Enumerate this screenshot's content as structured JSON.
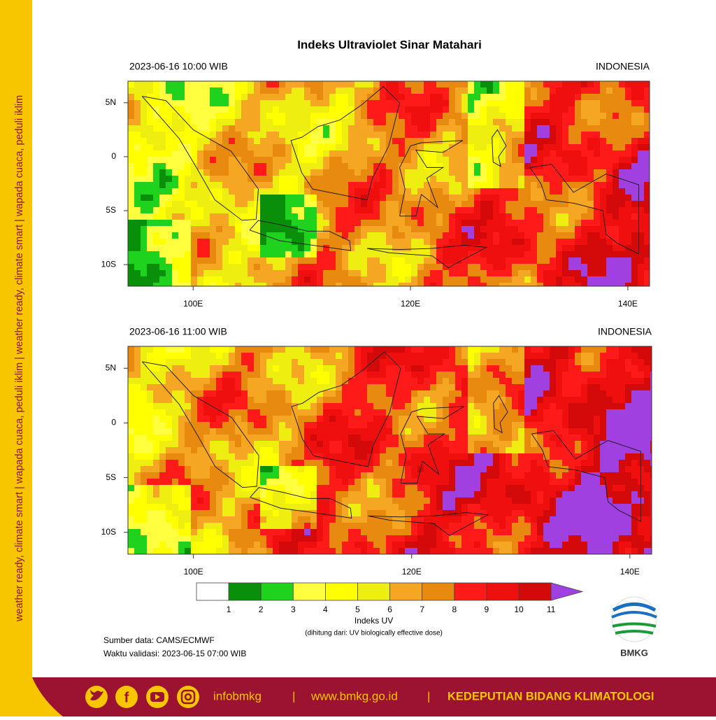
{
  "side_text": "weather ready, climate smart | wapada cuaca, peduli iklim | weather ready, climate smart | wapada cuaca, peduli iklim",
  "title": "Indeks Ultraviolet Sinar Matahari",
  "extent": {
    "lon": [
      94,
      142
    ],
    "lat": [
      -12,
      7
    ]
  },
  "lon_ticks": [
    {
      "value": 100,
      "label": "100E"
    },
    {
      "value": 120,
      "label": "120E"
    },
    {
      "value": 140,
      "label": "140E"
    }
  ],
  "lat_ticks": [
    {
      "value": 5,
      "label": "5N"
    },
    {
      "value": 0,
      "label": "0"
    },
    {
      "value": -5,
      "label": "5S"
    },
    {
      "value": -10,
      "label": "10S"
    }
  ],
  "panels": [
    {
      "time": "2023-06-16  10:00 WIB",
      "region": "INDONESIA"
    },
    {
      "time": "2023-06-16  11:00 WIB",
      "region": "INDONESIA"
    }
  ],
  "colorbar": {
    "title": "Indeks UV",
    "subtitle": "(dihitung dari: UV biologically effective dose)",
    "levels": [
      1,
      2,
      3,
      4,
      5,
      6,
      7,
      8,
      9,
      10,
      11
    ],
    "colors": [
      "#ffffff",
      "#0a8f0a",
      "#1ed21e",
      "#ffff40",
      "#ffff00",
      "#eeee10",
      "#f5a623",
      "#e88a10",
      "#ff1a1a",
      "#f00f0f",
      "#d40a0a",
      "#a040e0"
    ]
  },
  "source": "Sumber data: CAMS/ECMWF",
  "validity": "Waktu validasi: 2023-06-15 07:00 WIB",
  "logo": "BMKG",
  "footer": {
    "handle": "infobmkg",
    "separator": "|",
    "website": "www.bmkg.go.id",
    "department": "KEDEPUTIAN BIDANG KLIMATOLOGI"
  }
}
